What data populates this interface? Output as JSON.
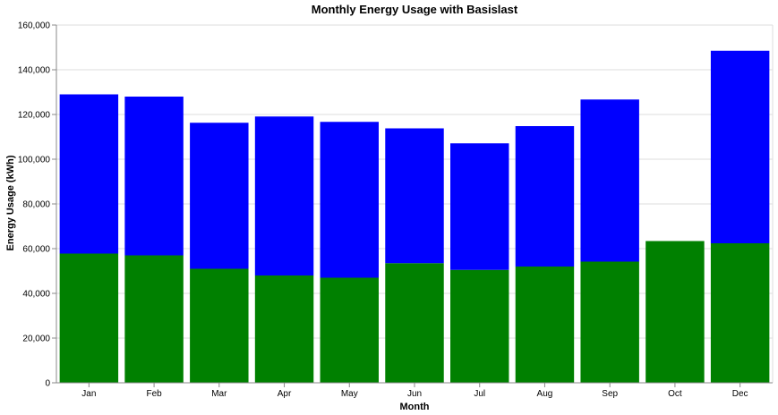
{
  "chart_data": {
    "type": "bar",
    "stacked": true,
    "title": "Monthly Energy Usage with Basislast",
    "xlabel": "Month",
    "ylabel": "Energy Usage (kWh)",
    "ylim": [
      0,
      160000
    ],
    "yticks": [
      "0",
      "20,000",
      "40,000",
      "60,000",
      "80,000",
      "100,000",
      "120,000",
      "140,000",
      "160,000"
    ],
    "ytick_values": [
      0,
      20000,
      40000,
      60000,
      80000,
      100000,
      120000,
      140000,
      160000
    ],
    "grid": true,
    "legend": "none",
    "categories": [
      "Jan",
      "Feb",
      "Mar",
      "Apr",
      "May",
      "Jun",
      "Jul",
      "Aug",
      "Sep",
      "Oct",
      "Dec"
    ],
    "series": [
      {
        "color": "#008000",
        "values": [
          57800,
          57000,
          51000,
          48000,
          47000,
          53500,
          50500,
          52000,
          54200,
          63400,
          62400
        ]
      },
      {
        "color": "#0000ff",
        "values": [
          71200,
          71000,
          65300,
          71100,
          69700,
          60300,
          56600,
          62800,
          72500,
          0,
          86100
        ]
      }
    ]
  }
}
